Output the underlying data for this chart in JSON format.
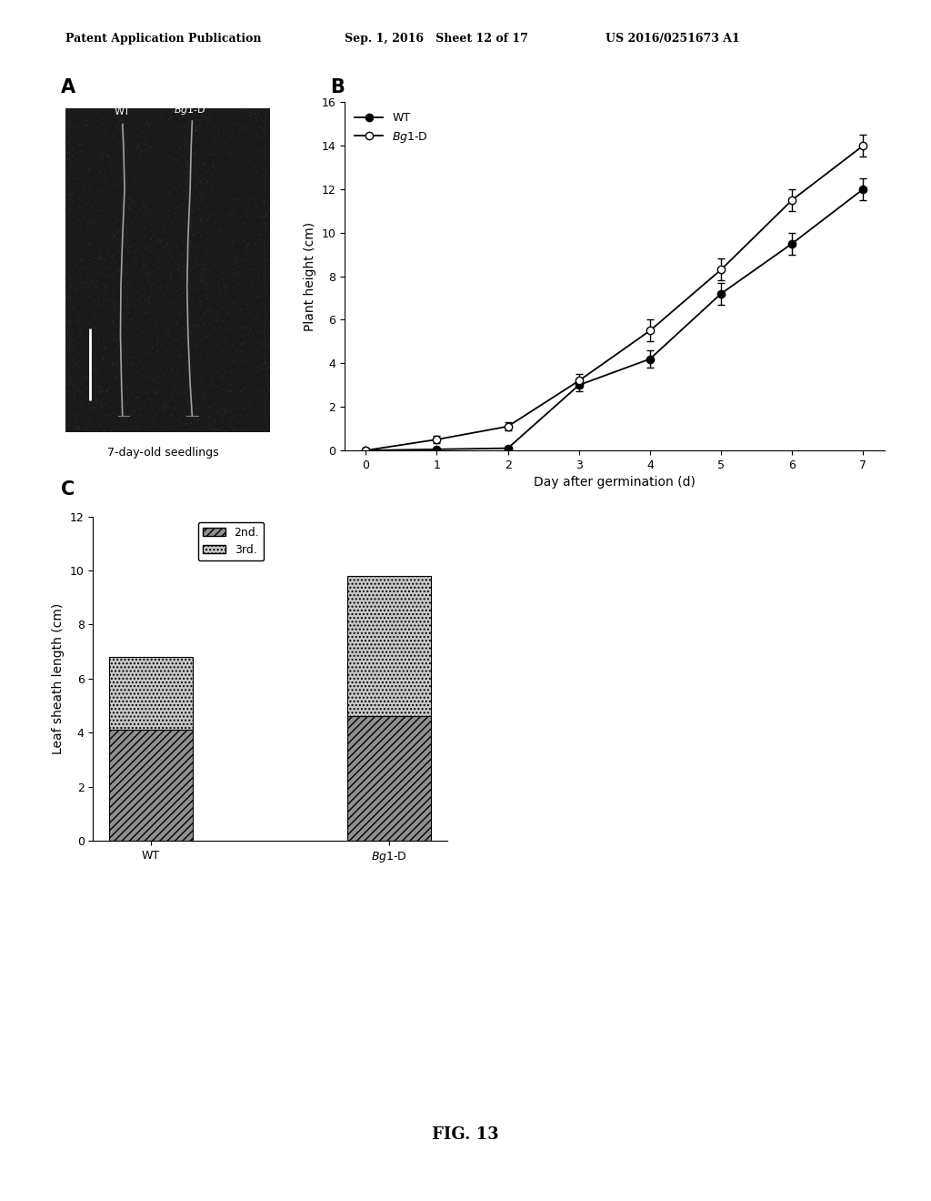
{
  "header_left": "Patent Application Publication",
  "header_mid": "Sep. 1, 2016   Sheet 12 of 17",
  "header_right": "US 2016/0251673 A1",
  "panel_A_label": "A",
  "panel_B_label": "B",
  "panel_C_label": "C",
  "panel_A_caption": "7-day-old seedlings",
  "panel_B_xlabel": "Day after germination (d)",
  "panel_B_ylabel": "Plant height (cm)",
  "panel_B_ylim": [
    0,
    16
  ],
  "panel_B_xlim": [
    0,
    7
  ],
  "panel_B_xticks": [
    0,
    1,
    2,
    3,
    4,
    5,
    6,
    7
  ],
  "panel_B_yticks": [
    0,
    2,
    4,
    6,
    8,
    10,
    12,
    14,
    16
  ],
  "panel_B_wt_x": [
    0,
    1,
    2,
    3,
    4,
    5,
    6,
    7
  ],
  "panel_B_wt_y": [
    0,
    0.05,
    0.1,
    3.0,
    4.2,
    7.2,
    9.5,
    12.0
  ],
  "panel_B_wt_err": [
    0,
    0.05,
    0.05,
    0.3,
    0.4,
    0.5,
    0.5,
    0.5
  ],
  "panel_B_bg1d_x": [
    0,
    1,
    2,
    3,
    4,
    5,
    6,
    7
  ],
  "panel_B_bg1d_y": [
    0,
    0.5,
    1.1,
    3.2,
    5.5,
    8.3,
    11.5,
    14.0
  ],
  "panel_B_bg1d_err": [
    0,
    0.15,
    0.2,
    0.3,
    0.5,
    0.5,
    0.5,
    0.5
  ],
  "panel_B_legend_wt": "WT",
  "panel_B_legend_bg1d": "Bg1-D",
  "panel_C_ylabel": "Leaf sheath length (cm)",
  "panel_C_ylim": [
    0,
    12
  ],
  "panel_C_yticks": [
    0,
    2,
    4,
    6,
    8,
    10,
    12
  ],
  "panel_C_categories": [
    "WT",
    "Bg1-D"
  ],
  "panel_C_2nd_values": [
    4.1,
    4.6
  ],
  "panel_C_3rd_values": [
    2.7,
    5.2
  ],
  "panel_C_legend_2nd": "2nd.",
  "panel_C_legend_3rd": "3rd.",
  "fig_label": "FIG. 13",
  "bg_color": "#ffffff",
  "text_color": "#000000",
  "photo_bg_color": "#1a1a1a"
}
